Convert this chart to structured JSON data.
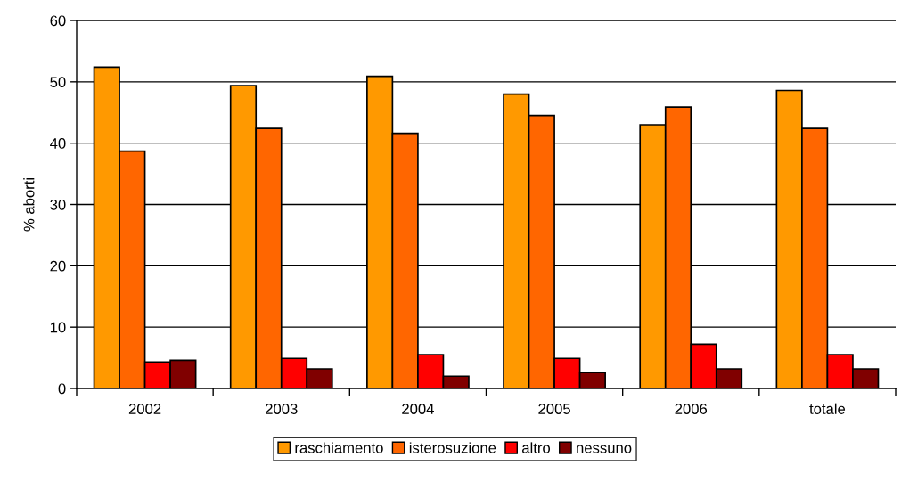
{
  "chart_data": {
    "type": "bar",
    "ylabel": "% aborti",
    "categories": [
      "2002",
      "2003",
      "2004",
      "2005",
      "2006",
      "totale"
    ],
    "series": [
      {
        "name": "raschiamento",
        "color": "#ff9900",
        "values": [
          52.4,
          49.4,
          50.9,
          48.0,
          43.0,
          48.6
        ]
      },
      {
        "name": "isterosuzione",
        "color": "#ff6600",
        "values": [
          38.7,
          42.4,
          41.6,
          44.5,
          45.9,
          42.4
        ]
      },
      {
        "name": "altro",
        "color": "#ff0000",
        "values": [
          4.3,
          4.9,
          5.5,
          4.9,
          7.2,
          5.5
        ]
      },
      {
        "name": "nessuno",
        "color": "#800000",
        "values": [
          4.6,
          3.2,
          2.0,
          2.6,
          3.2,
          3.2
        ]
      }
    ],
    "ylim": [
      0,
      60
    ],
    "yticks": [
      0,
      10,
      20,
      30,
      40,
      50,
      60
    ],
    "grid": "y",
    "legend": "bottom"
  }
}
